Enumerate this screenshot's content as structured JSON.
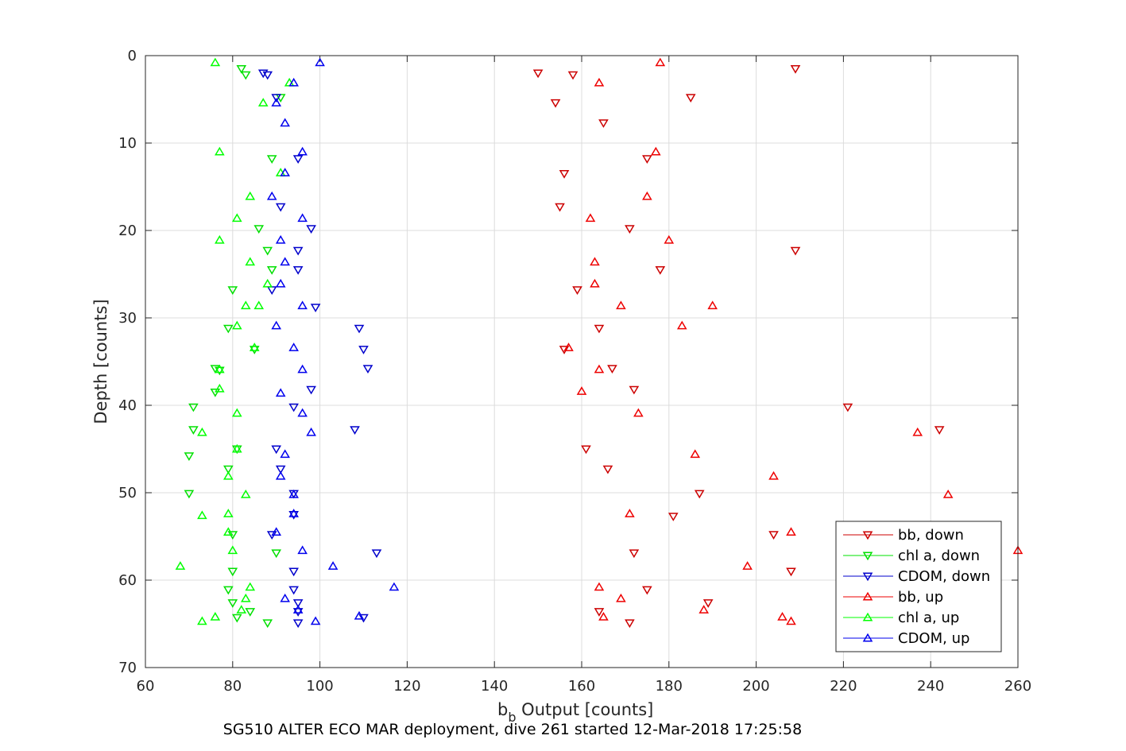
{
  "chart_data": {
    "type": "scatter",
    "title": "",
    "caption": "SG510 ALTER ECO MAR deployment, dive 261 started 12-Mar-2018 17:25:58",
    "xlabel_main": "b",
    "xlabel_sub": "b",
    "xlabel_rest": " Output [counts]",
    "ylabel": "Depth [counts]",
    "xlim": [
      60,
      260
    ],
    "ylim": [
      0,
      70
    ],
    "y_reversed": true,
    "grid": true,
    "legend_position": "bottom-right",
    "x_ticks": [
      "60",
      "80",
      "100",
      "120",
      "140",
      "160",
      "180",
      "200",
      "220",
      "240",
      "260"
    ],
    "y_ticks": [
      "0",
      "10",
      "20",
      "30",
      "40",
      "50",
      "60",
      "70"
    ],
    "series": [
      {
        "name": "bb, down",
        "color": "#cc0000",
        "marker": "down",
        "points": [
          [
            209,
            1.5
          ],
          [
            150,
            2
          ],
          [
            158,
            2.2
          ],
          [
            185,
            4.8
          ],
          [
            154,
            5.4
          ],
          [
            165,
            7.7
          ],
          [
            175,
            11.8
          ],
          [
            156,
            13.5
          ],
          [
            155,
            17.3
          ],
          [
            171,
            19.8
          ],
          [
            209,
            22.3
          ],
          [
            178,
            24.5
          ],
          [
            159,
            26.8
          ],
          [
            164,
            31.2
          ],
          [
            156,
            33.6
          ],
          [
            167,
            35.8
          ],
          [
            172,
            38.2
          ],
          [
            221,
            40.2
          ],
          [
            242,
            42.8
          ],
          [
            161,
            45
          ],
          [
            166,
            47.3
          ],
          [
            187,
            50.1
          ],
          [
            181,
            52.7
          ],
          [
            204,
            54.8
          ],
          [
            172,
            56.9
          ],
          [
            208,
            59
          ],
          [
            175,
            61.1
          ],
          [
            189,
            62.6
          ],
          [
            164,
            63.6
          ],
          [
            171,
            64.9
          ]
        ]
      },
      {
        "name": "chl a, down",
        "color": "#00e000",
        "marker": "down",
        "points": [
          [
            82,
            1.5
          ],
          [
            83,
            2.2
          ],
          [
            91,
            4.8
          ],
          [
            89,
            11.8
          ],
          [
            86,
            19.8
          ],
          [
            88,
            22.3
          ],
          [
            89,
            24.5
          ],
          [
            80,
            26.8
          ],
          [
            79,
            31.2
          ],
          [
            85,
            33.6
          ],
          [
            76,
            35.8
          ],
          [
            77,
            36
          ],
          [
            76,
            38.5
          ],
          [
            71,
            40.2
          ],
          [
            71,
            42.8
          ],
          [
            70,
            45.8
          ],
          [
            81,
            45
          ],
          [
            79,
            47.3
          ],
          [
            70,
            50.1
          ],
          [
            80,
            54.8
          ],
          [
            90,
            56.9
          ],
          [
            80,
            59
          ],
          [
            79,
            61.1
          ],
          [
            80,
            62.6
          ],
          [
            81,
            64.3
          ],
          [
            88,
            64.9
          ],
          [
            84,
            63.6
          ]
        ]
      },
      {
        "name": "CDOM, down",
        "color": "#0000cc",
        "marker": "down",
        "points": [
          [
            87,
            2
          ],
          [
            88,
            2.2
          ],
          [
            90,
            4.8
          ],
          [
            95,
            11.8
          ],
          [
            91,
            17.3
          ],
          [
            98,
            19.8
          ],
          [
            95,
            22.3
          ],
          [
            95,
            24.5
          ],
          [
            89,
            26.8
          ],
          [
            99,
            28.8
          ],
          [
            109,
            31.2
          ],
          [
            110,
            33.6
          ],
          [
            111,
            35.8
          ],
          [
            98,
            38.2
          ],
          [
            94,
            40.2
          ],
          [
            108,
            42.8
          ],
          [
            90,
            45
          ],
          [
            91,
            47.3
          ],
          [
            94,
            50.1
          ],
          [
            94,
            52.5
          ],
          [
            89,
            54.8
          ],
          [
            113,
            56.9
          ],
          [
            94,
            59
          ],
          [
            94,
            61.1
          ],
          [
            95,
            62.6
          ],
          [
            95,
            63.6
          ],
          [
            110,
            64.3
          ],
          [
            95,
            64.9
          ]
        ]
      },
      {
        "name": "bb, up",
        "color": "#ee0000",
        "marker": "up",
        "points": [
          [
            178,
            0.8
          ],
          [
            164,
            3.1
          ],
          [
            177,
            11
          ],
          [
            175,
            16.1
          ],
          [
            162,
            18.6
          ],
          [
            180,
            21.1
          ],
          [
            163,
            23.6
          ],
          [
            163,
            26.1
          ],
          [
            169,
            28.6
          ],
          [
            190,
            28.6
          ],
          [
            183,
            30.9
          ],
          [
            157,
            33.4
          ],
          [
            164,
            35.9
          ],
          [
            160,
            38.4
          ],
          [
            173,
            40.9
          ],
          [
            237,
            43.1
          ],
          [
            186,
            45.6
          ],
          [
            204,
            48.1
          ],
          [
            244,
            50.2
          ],
          [
            171,
            52.4
          ],
          [
            208,
            54.5
          ],
          [
            260,
            56.6
          ],
          [
            198,
            58.4
          ],
          [
            164,
            60.8
          ],
          [
            169,
            62.1
          ],
          [
            188,
            63.4
          ],
          [
            206,
            64.2
          ],
          [
            208,
            64.7
          ],
          [
            165,
            64.2
          ]
        ]
      },
      {
        "name": "chl a, up",
        "color": "#00ff00",
        "marker": "up",
        "points": [
          [
            76,
            0.8
          ],
          [
            93,
            3.1
          ],
          [
            87,
            5.4
          ],
          [
            77,
            11
          ],
          [
            91,
            13.4
          ],
          [
            84,
            16.1
          ],
          [
            81,
            18.6
          ],
          [
            77,
            21.1
          ],
          [
            84,
            23.6
          ],
          [
            88,
            26.1
          ],
          [
            83,
            28.6
          ],
          [
            86,
            28.6
          ],
          [
            81,
            30.9
          ],
          [
            85,
            33.4
          ],
          [
            77,
            35.9
          ],
          [
            77,
            38.1
          ],
          [
            81,
            40.9
          ],
          [
            73,
            43.1
          ],
          [
            81,
            45
          ],
          [
            79,
            48.1
          ],
          [
            83,
            50.2
          ],
          [
            73,
            52.6
          ],
          [
            79,
            52.4
          ],
          [
            79,
            54.5
          ],
          [
            80,
            56.6
          ],
          [
            68,
            58.4
          ],
          [
            84,
            60.8
          ],
          [
            83,
            62.1
          ],
          [
            82,
            63.4
          ],
          [
            76,
            64.2
          ],
          [
            73,
            64.7
          ]
        ]
      },
      {
        "name": "CDOM, up",
        "color": "#0000ee",
        "marker": "up",
        "points": [
          [
            100,
            0.8
          ],
          [
            94,
            3.1
          ],
          [
            90,
            5.4
          ],
          [
            92,
            7.7
          ],
          [
            96,
            11
          ],
          [
            92,
            13.4
          ],
          [
            89,
            16.1
          ],
          [
            96,
            18.6
          ],
          [
            91,
            21.1
          ],
          [
            92,
            23.6
          ],
          [
            91,
            26.1
          ],
          [
            96,
            28.6
          ],
          [
            90,
            30.9
          ],
          [
            94,
            33.4
          ],
          [
            96,
            35.9
          ],
          [
            91,
            38.6
          ],
          [
            96,
            40.9
          ],
          [
            98,
            43.1
          ],
          [
            92,
            45.6
          ],
          [
            91,
            48.1
          ],
          [
            94,
            50.2
          ],
          [
            94,
            52.4
          ],
          [
            90,
            54.5
          ],
          [
            96,
            56.6
          ],
          [
            103,
            58.4
          ],
          [
            117,
            60.8
          ],
          [
            92,
            62.1
          ],
          [
            95,
            63.4
          ],
          [
            109,
            64.1
          ],
          [
            99,
            64.7
          ]
        ]
      }
    ]
  }
}
